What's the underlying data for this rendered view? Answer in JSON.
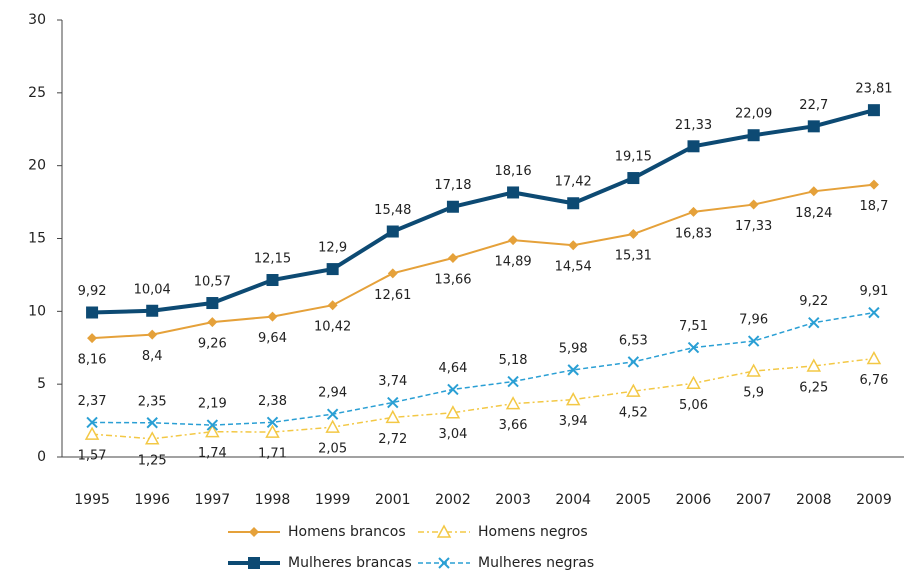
{
  "chart_data": {
    "type": "line",
    "categories": [
      "1995",
      "1996",
      "1997",
      "1998",
      "1999",
      "2001",
      "2002",
      "2003",
      "2004",
      "2005",
      "2006",
      "2007",
      "2008",
      "2009"
    ],
    "ylim": [
      0,
      30
    ],
    "yticks": [
      0,
      5,
      10,
      15,
      20,
      25,
      30
    ],
    "series": [
      {
        "name": "Homens  brancos",
        "color": "#e5a13a",
        "marker": "diamond",
        "dash": "none",
        "width": 2,
        "label_side": "below",
        "values": [
          8.16,
          8.4,
          9.26,
          9.64,
          10.42,
          12.61,
          13.66,
          14.89,
          14.54,
          15.31,
          16.83,
          17.33,
          18.24,
          18.7
        ],
        "value_labels": [
          "8,16",
          "8,4",
          "9,26",
          "9,64",
          "10,42",
          "12,61",
          "13,66",
          "14,89",
          "14,54",
          "15,31",
          "16,83",
          "17,33",
          "18,24",
          "18,7"
        ]
      },
      {
        "name": "Homens negros",
        "color": "#f3c845",
        "marker": "triangle",
        "dash": "6 3 2 3",
        "width": 1.5,
        "label_side": "below",
        "values": [
          1.57,
          1.25,
          1.74,
          1.71,
          2.05,
          2.72,
          3.04,
          3.66,
          3.94,
          4.52,
          5.06,
          5.9,
          6.25,
          6.76
        ],
        "value_labels": [
          "1,57",
          "1,25",
          "1,74",
          "1,71",
          "2,05",
          "2,72",
          "3,04",
          "3,66",
          "3,94",
          "4,52",
          "5,06",
          "5,9",
          "6,25",
          "6,76"
        ]
      },
      {
        "name": "Mulheres brancas",
        "color": "#0d4a73",
        "marker": "square",
        "dash": "none",
        "width": 4,
        "label_side": "above",
        "values": [
          9.92,
          10.04,
          10.57,
          12.15,
          12.9,
          15.48,
          17.18,
          18.16,
          17.42,
          19.15,
          21.33,
          22.09,
          22.7,
          23.81
        ],
        "value_labels": [
          "9,92",
          "10,04",
          "10,57",
          "12,15",
          "12,9",
          "15,48",
          "17,18",
          "18,16",
          "17,42",
          "19,15",
          "21,33",
          "22,09",
          "22,7",
          "23,81"
        ]
      },
      {
        "name": "Mulheres negras",
        "color": "#2a9fd4",
        "marker": "x",
        "dash": "5 3",
        "width": 1.5,
        "label_side": "above",
        "values": [
          2.37,
          2.35,
          2.19,
          2.38,
          2.94,
          3.74,
          4.64,
          5.18,
          5.98,
          6.53,
          7.51,
          7.96,
          9.22,
          9.91
        ],
        "value_labels": [
          "2,37",
          "2,35",
          "2,19",
          "2,38",
          "2,94",
          "3,74",
          "4,64",
          "5,18",
          "5,98",
          "6,53",
          "7,51",
          "7,96",
          "9,22",
          "9,91"
        ]
      }
    ]
  }
}
